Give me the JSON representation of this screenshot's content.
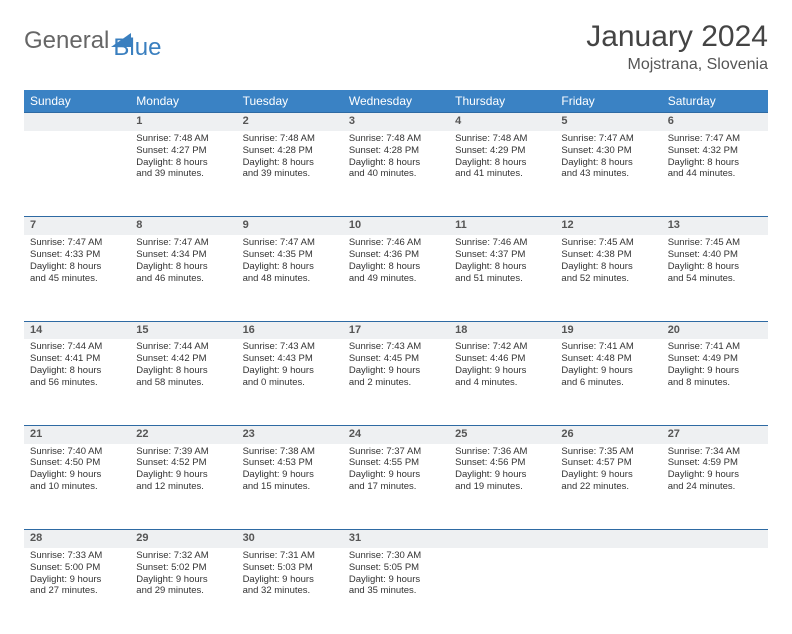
{
  "logo": {
    "part1": "General",
    "part2": "Blue"
  },
  "title": "January 2024",
  "location": "Mojstrana, Slovenia",
  "weekdays": [
    "Sunday",
    "Monday",
    "Tuesday",
    "Wednesday",
    "Thursday",
    "Friday",
    "Saturday"
  ],
  "header_bg": "#3a82c4",
  "header_fg": "#ffffff",
  "daynum_bg": "#eef0f2",
  "daynum_border": "#2e6aa3",
  "text_color": "#333333",
  "weeks": [
    [
      null,
      {
        "n": "1",
        "sunrise": "Sunrise: 7:48 AM",
        "sunset": "Sunset: 4:27 PM",
        "day1": "Daylight: 8 hours",
        "day2": "and 39 minutes."
      },
      {
        "n": "2",
        "sunrise": "Sunrise: 7:48 AM",
        "sunset": "Sunset: 4:28 PM",
        "day1": "Daylight: 8 hours",
        "day2": "and 39 minutes."
      },
      {
        "n": "3",
        "sunrise": "Sunrise: 7:48 AM",
        "sunset": "Sunset: 4:28 PM",
        "day1": "Daylight: 8 hours",
        "day2": "and 40 minutes."
      },
      {
        "n": "4",
        "sunrise": "Sunrise: 7:48 AM",
        "sunset": "Sunset: 4:29 PM",
        "day1": "Daylight: 8 hours",
        "day2": "and 41 minutes."
      },
      {
        "n": "5",
        "sunrise": "Sunrise: 7:47 AM",
        "sunset": "Sunset: 4:30 PM",
        "day1": "Daylight: 8 hours",
        "day2": "and 43 minutes."
      },
      {
        "n": "6",
        "sunrise": "Sunrise: 7:47 AM",
        "sunset": "Sunset: 4:32 PM",
        "day1": "Daylight: 8 hours",
        "day2": "and 44 minutes."
      }
    ],
    [
      {
        "n": "7",
        "sunrise": "Sunrise: 7:47 AM",
        "sunset": "Sunset: 4:33 PM",
        "day1": "Daylight: 8 hours",
        "day2": "and 45 minutes."
      },
      {
        "n": "8",
        "sunrise": "Sunrise: 7:47 AM",
        "sunset": "Sunset: 4:34 PM",
        "day1": "Daylight: 8 hours",
        "day2": "and 46 minutes."
      },
      {
        "n": "9",
        "sunrise": "Sunrise: 7:47 AM",
        "sunset": "Sunset: 4:35 PM",
        "day1": "Daylight: 8 hours",
        "day2": "and 48 minutes."
      },
      {
        "n": "10",
        "sunrise": "Sunrise: 7:46 AM",
        "sunset": "Sunset: 4:36 PM",
        "day1": "Daylight: 8 hours",
        "day2": "and 49 minutes."
      },
      {
        "n": "11",
        "sunrise": "Sunrise: 7:46 AM",
        "sunset": "Sunset: 4:37 PM",
        "day1": "Daylight: 8 hours",
        "day2": "and 51 minutes."
      },
      {
        "n": "12",
        "sunrise": "Sunrise: 7:45 AM",
        "sunset": "Sunset: 4:38 PM",
        "day1": "Daylight: 8 hours",
        "day2": "and 52 minutes."
      },
      {
        "n": "13",
        "sunrise": "Sunrise: 7:45 AM",
        "sunset": "Sunset: 4:40 PM",
        "day1": "Daylight: 8 hours",
        "day2": "and 54 minutes."
      }
    ],
    [
      {
        "n": "14",
        "sunrise": "Sunrise: 7:44 AM",
        "sunset": "Sunset: 4:41 PM",
        "day1": "Daylight: 8 hours",
        "day2": "and 56 minutes."
      },
      {
        "n": "15",
        "sunrise": "Sunrise: 7:44 AM",
        "sunset": "Sunset: 4:42 PM",
        "day1": "Daylight: 8 hours",
        "day2": "and 58 minutes."
      },
      {
        "n": "16",
        "sunrise": "Sunrise: 7:43 AM",
        "sunset": "Sunset: 4:43 PM",
        "day1": "Daylight: 9 hours",
        "day2": "and 0 minutes."
      },
      {
        "n": "17",
        "sunrise": "Sunrise: 7:43 AM",
        "sunset": "Sunset: 4:45 PM",
        "day1": "Daylight: 9 hours",
        "day2": "and 2 minutes."
      },
      {
        "n": "18",
        "sunrise": "Sunrise: 7:42 AM",
        "sunset": "Sunset: 4:46 PM",
        "day1": "Daylight: 9 hours",
        "day2": "and 4 minutes."
      },
      {
        "n": "19",
        "sunrise": "Sunrise: 7:41 AM",
        "sunset": "Sunset: 4:48 PM",
        "day1": "Daylight: 9 hours",
        "day2": "and 6 minutes."
      },
      {
        "n": "20",
        "sunrise": "Sunrise: 7:41 AM",
        "sunset": "Sunset: 4:49 PM",
        "day1": "Daylight: 9 hours",
        "day2": "and 8 minutes."
      }
    ],
    [
      {
        "n": "21",
        "sunrise": "Sunrise: 7:40 AM",
        "sunset": "Sunset: 4:50 PM",
        "day1": "Daylight: 9 hours",
        "day2": "and 10 minutes."
      },
      {
        "n": "22",
        "sunrise": "Sunrise: 7:39 AM",
        "sunset": "Sunset: 4:52 PM",
        "day1": "Daylight: 9 hours",
        "day2": "and 12 minutes."
      },
      {
        "n": "23",
        "sunrise": "Sunrise: 7:38 AM",
        "sunset": "Sunset: 4:53 PM",
        "day1": "Daylight: 9 hours",
        "day2": "and 15 minutes."
      },
      {
        "n": "24",
        "sunrise": "Sunrise: 7:37 AM",
        "sunset": "Sunset: 4:55 PM",
        "day1": "Daylight: 9 hours",
        "day2": "and 17 minutes."
      },
      {
        "n": "25",
        "sunrise": "Sunrise: 7:36 AM",
        "sunset": "Sunset: 4:56 PM",
        "day1": "Daylight: 9 hours",
        "day2": "and 19 minutes."
      },
      {
        "n": "26",
        "sunrise": "Sunrise: 7:35 AM",
        "sunset": "Sunset: 4:57 PM",
        "day1": "Daylight: 9 hours",
        "day2": "and 22 minutes."
      },
      {
        "n": "27",
        "sunrise": "Sunrise: 7:34 AM",
        "sunset": "Sunset: 4:59 PM",
        "day1": "Daylight: 9 hours",
        "day2": "and 24 minutes."
      }
    ],
    [
      {
        "n": "28",
        "sunrise": "Sunrise: 7:33 AM",
        "sunset": "Sunset: 5:00 PM",
        "day1": "Daylight: 9 hours",
        "day2": "and 27 minutes."
      },
      {
        "n": "29",
        "sunrise": "Sunrise: 7:32 AM",
        "sunset": "Sunset: 5:02 PM",
        "day1": "Daylight: 9 hours",
        "day2": "and 29 minutes."
      },
      {
        "n": "30",
        "sunrise": "Sunrise: 7:31 AM",
        "sunset": "Sunset: 5:03 PM",
        "day1": "Daylight: 9 hours",
        "day2": "and 32 minutes."
      },
      {
        "n": "31",
        "sunrise": "Sunrise: 7:30 AM",
        "sunset": "Sunset: 5:05 PM",
        "day1": "Daylight: 9 hours",
        "day2": "and 35 minutes."
      },
      null,
      null,
      null
    ]
  ]
}
